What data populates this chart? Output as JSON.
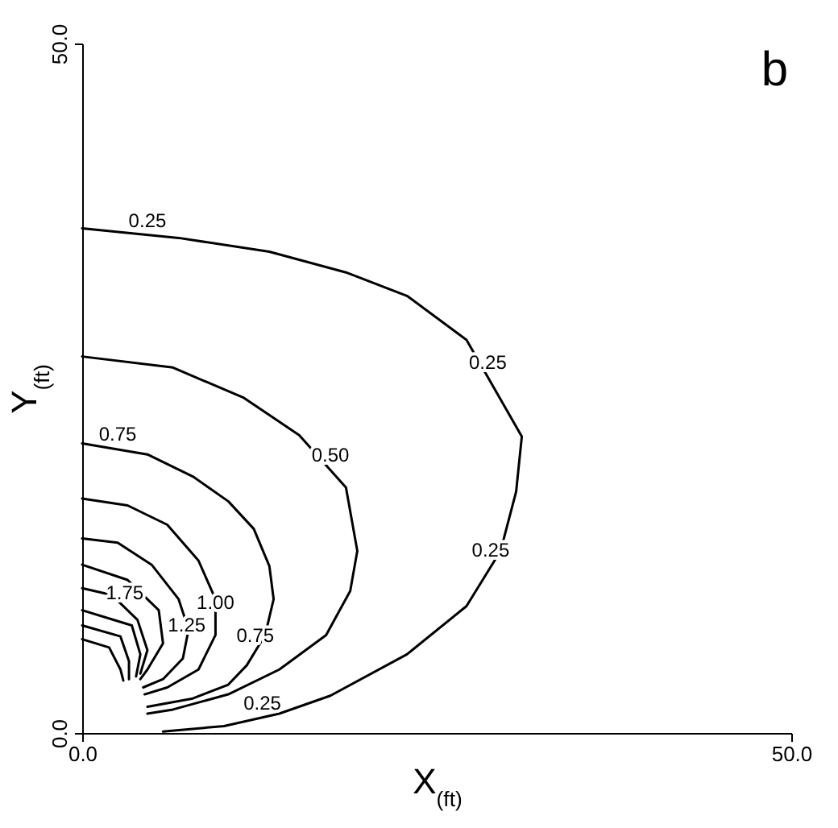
{
  "chart_data": {
    "type": "line",
    "xlabel": "X$_{(ft)}$",
    "ylabel": "Y$_{(ft)}$",
    "xlim": [
      0,
      50
    ],
    "ylim": [
      0,
      50
    ],
    "xticks": [
      {
        "value": 0,
        "label": "0.0"
      },
      {
        "value": 50,
        "label": "50.0"
      }
    ],
    "yticks": [
      {
        "value": 0,
        "label": "0.0"
      },
      {
        "value": 50,
        "label": "50.0"
      }
    ],
    "grid": false,
    "marker": "none",
    "line_style": "solid",
    "series": [
      {
        "color": "#000000",
        "x": [
          0,
          6.8,
          13.2,
          18.6,
          22.9,
          27.1,
          31,
          30.6,
          29.5,
          27.1,
          22.9,
          17.5,
          13.9,
          10,
          5.7
        ],
        "values": [
          36.6,
          35.9,
          34.9,
          33.4,
          31.7,
          28.5,
          21.5,
          17.5,
          13.2,
          9.2,
          5.7,
          2.7,
          1.4,
          0.5,
          0.1
        ]
      },
      {
        "color": "#000000",
        "x": [
          0,
          6.4,
          11.4,
          15.3,
          18.6,
          19.4,
          18.9,
          17.2,
          13.9,
          10.3,
          6.4,
          4.6
        ],
        "values": [
          27.3,
          26.5,
          24.3,
          21.6,
          17.8,
          13.2,
          10.3,
          7.1,
          4.6,
          2.8,
          1.7,
          1.4
        ]
      },
      {
        "color": "#000000",
        "x": [
          0,
          4.6,
          7.8,
          10.3,
          12.1,
          13.2,
          13.5,
          12.9,
          11.6,
          10.3,
          7.8,
          4.6
        ],
        "values": [
          21,
          20.2,
          18.6,
          16.8,
          14.8,
          12.1,
          9.7,
          7.1,
          4.9,
          3.5,
          2.5,
          1.9
        ]
      },
      {
        "color": "#000000",
        "x": [
          0,
          3.2,
          6,
          8.2,
          9.4,
          9.4,
          8.2,
          6,
          4.4
        ],
        "values": [
          17,
          16.5,
          15.1,
          12.5,
          9.7,
          7.1,
          4.6,
          3.3,
          2.8
        ]
      },
      {
        "color": "#000000",
        "x": [
          0,
          2.5,
          4.9,
          6.8,
          7.5,
          7.1,
          5.7,
          4.3
        ],
        "values": [
          14.1,
          13.8,
          12.2,
          9.7,
          7.5,
          5.4,
          3.9,
          3.3
        ]
      },
      {
        "color": "#000000",
        "x": [
          0,
          3.2,
          5.4,
          5.7,
          4.6,
          4.1
        ],
        "values": [
          12.2,
          11.1,
          8.9,
          6.5,
          4.6,
          3.9
        ]
      },
      {
        "color": "#000000",
        "x": [
          0,
          2.1,
          3.9,
          4.6,
          4.1
        ],
        "values": [
          10.5,
          10,
          8.2,
          6,
          4.3
        ]
      },
      {
        "color": "#000000",
        "x": [
          0,
          3.5,
          4.1,
          3.8
        ],
        "values": [
          8.9,
          7.8,
          5.7,
          4.1
        ]
      },
      {
        "color": "#000000",
        "x": [
          0,
          2.7,
          3.3,
          3.3
        ],
        "values": [
          7.8,
          7,
          5.2,
          3.9
        ]
      },
      {
        "color": "#000000",
        "x": [
          0,
          1.9,
          2.7,
          2.9
        ],
        "values": [
          6.8,
          6.2,
          4.6,
          3.8
        ]
      }
    ],
    "annotations": [
      {
        "text": "0.25",
        "x": 4.6,
        "y": 36.1
      },
      {
        "text": "0.25",
        "x": 28.6,
        "y": 25.8
      },
      {
        "text": "0.25",
        "x": 28.8,
        "y": 12.2
      },
      {
        "text": "0.25",
        "x": 12.7,
        "y": 1.1
      },
      {
        "text": "0.50",
        "x": 17.5,
        "y": 19.1
      },
      {
        "text": "0.75",
        "x": 2.5,
        "y": 20.6
      },
      {
        "text": "0.75",
        "x": 12.2,
        "y": 6
      },
      {
        "text": "1.00",
        "x": 9.4,
        "y": 8.4
      },
      {
        "text": "1.25",
        "x": 7.37,
        "y": 6.8
      },
      {
        "text": "1.75",
        "x": 3,
        "y": 9.1
      },
      "b"
    ]
  }
}
